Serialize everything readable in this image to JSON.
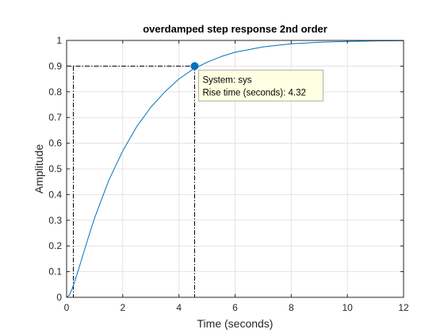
{
  "chart_data": {
    "type": "line",
    "title": "overdamped step response 2nd order",
    "xlabel": "Time (seconds)",
    "ylabel": "Amplitude",
    "xlim": [
      0,
      12
    ],
    "ylim": [
      0,
      1
    ],
    "x_ticks": [
      "0",
      "2",
      "4",
      "6",
      "8",
      "10",
      "12"
    ],
    "y_ticks": [
      "0",
      "0.1",
      "0.2",
      "0.3",
      "0.4",
      "0.5",
      "0.6",
      "0.7",
      "0.8",
      "0.9",
      "1"
    ],
    "grid": true,
    "line_color": "#0072BD",
    "series": [
      {
        "x": [
          0,
          0.1,
          0.2,
          0.3,
          0.5,
          0.75,
          1,
          1.5,
          2,
          2.5,
          3,
          3.5,
          4,
          4.5,
          5,
          5.5,
          6,
          7,
          8,
          9,
          10,
          11,
          12
        ],
        "y": [
          0,
          0.009,
          0.034,
          0.065,
          0.135,
          0.225,
          0.31,
          0.455,
          0.57,
          0.665,
          0.74,
          0.8,
          0.85,
          0.888,
          0.915,
          0.937,
          0.954,
          0.975,
          0.987,
          0.993,
          0.996,
          0.998,
          0.999
        ]
      }
    ],
    "rise_time_markers": {
      "start": {
        "x": 0.24,
        "y": 0.1
      },
      "end": {
        "x": 4.56,
        "y": 0.9
      }
    },
    "datatip": {
      "x": 4.56,
      "y": 0.9,
      "line1": "System: sys",
      "line2": "Rise time (seconds): 4.32",
      "fill": "#FFFFE1",
      "border": "#B0B0B0"
    }
  }
}
